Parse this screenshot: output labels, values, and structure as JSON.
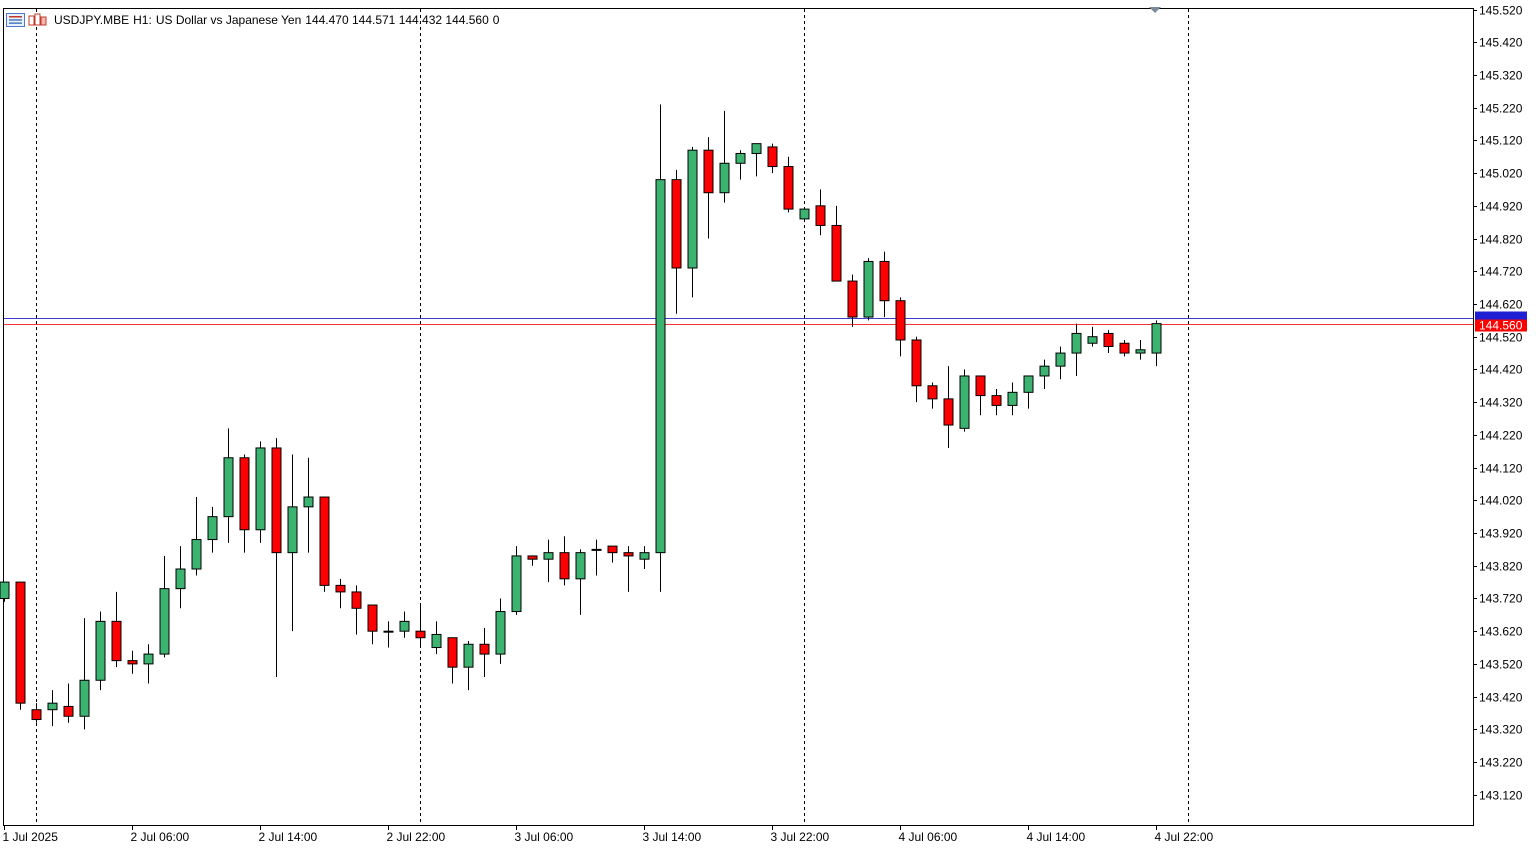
{
  "header": {
    "symbol": "USDJPY.MBE",
    "timeframe": "H1:",
    "description": "US Dollar vs Japanese Yen",
    "ohlc": "144.470 144.571 144.432 144.560",
    "volume": "0",
    "icons": [
      "list-icon",
      "one-click-trading-icon"
    ]
  },
  "colors": {
    "bull": "#3cb371",
    "bear": "#ff0000",
    "outline": "#000000",
    "bid_line": "#ff3030",
    "ask_line": "#3c3cd0",
    "bid_tag": "#ff0000",
    "ask_tag": "#1e1ed2"
  },
  "chart_data": {
    "type": "candlestick",
    "symbol": "USDJPY.MBE",
    "timeframe": "H1",
    "y_axis": {
      "ylim": [
        143.0,
        145.54
      ],
      "ticks": [
        "145.520",
        "145.420",
        "145.320",
        "145.220",
        "145.120",
        "145.020",
        "144.920",
        "144.820",
        "144.720",
        "144.620",
        "144.520",
        "144.420",
        "144.320",
        "144.220",
        "144.120",
        "144.020",
        "143.920",
        "143.820",
        "143.720",
        "143.620",
        "143.520",
        "143.420",
        "143.320",
        "143.220",
        "143.120"
      ]
    },
    "x_axis": {
      "ticks": [
        {
          "label": "1 Jul 2025",
          "index": 0
        },
        {
          "label": "2 Jul 06:00",
          "index": 8
        },
        {
          "label": "2 Jul 14:00",
          "index": 16
        },
        {
          "label": "2 Jul 22:00",
          "index": 24
        },
        {
          "label": "3 Jul 06:00",
          "index": 32
        },
        {
          "label": "3 Jul 14:00",
          "index": 40
        },
        {
          "label": "3 Jul 22:00",
          "index": 48
        },
        {
          "label": "4 Jul 06:00",
          "index": 56
        },
        {
          "label": "4 Jul 14:00",
          "index": 64
        },
        {
          "label": "4 Jul 22:00",
          "index": 72
        }
      ],
      "day_separators": [
        2,
        26,
        50,
        74
      ]
    },
    "price_lines": {
      "ask": 144.577,
      "bid": 144.56,
      "bid_label": "144.560"
    },
    "candles": [
      {
        "o": 143.72,
        "h": 143.77,
        "l": 143.71,
        "c": 143.77
      },
      {
        "o": 143.77,
        "h": 143.77,
        "l": 143.38,
        "c": 143.4
      },
      {
        "o": 143.38,
        "h": 143.4,
        "l": 143.34,
        "c": 143.35
      },
      {
        "o": 143.38,
        "h": 143.44,
        "l": 143.33,
        "c": 143.4
      },
      {
        "o": 143.39,
        "h": 143.46,
        "l": 143.34,
        "c": 143.36
      },
      {
        "o": 143.36,
        "h": 143.66,
        "l": 143.32,
        "c": 143.47
      },
      {
        "o": 143.47,
        "h": 143.68,
        "l": 143.44,
        "c": 143.65
      },
      {
        "o": 143.65,
        "h": 143.74,
        "l": 143.51,
        "c": 143.53
      },
      {
        "o": 143.53,
        "h": 143.56,
        "l": 143.49,
        "c": 143.52
      },
      {
        "o": 143.52,
        "h": 143.58,
        "l": 143.46,
        "c": 143.55
      },
      {
        "o": 143.55,
        "h": 143.85,
        "l": 143.54,
        "c": 143.75
      },
      {
        "o": 143.75,
        "h": 143.88,
        "l": 143.69,
        "c": 143.81
      },
      {
        "o": 143.81,
        "h": 144.03,
        "l": 143.79,
        "c": 143.9
      },
      {
        "o": 143.9,
        "h": 144.0,
        "l": 143.86,
        "c": 143.97
      },
      {
        "o": 143.97,
        "h": 144.24,
        "l": 143.89,
        "c": 144.15
      },
      {
        "o": 144.15,
        "h": 144.16,
        "l": 143.86,
        "c": 143.93
      },
      {
        "o": 143.93,
        "h": 144.2,
        "l": 143.89,
        "c": 144.18
      },
      {
        "o": 144.18,
        "h": 144.21,
        "l": 143.48,
        "c": 143.86
      },
      {
        "o": 143.86,
        "h": 144.16,
        "l": 143.62,
        "c": 144.0
      },
      {
        "o": 144.0,
        "h": 144.15,
        "l": 143.86,
        "c": 144.03
      },
      {
        "o": 144.03,
        "h": 144.03,
        "l": 143.74,
        "c": 143.76
      },
      {
        "o": 143.76,
        "h": 143.78,
        "l": 143.69,
        "c": 143.74
      },
      {
        "o": 143.74,
        "h": 143.76,
        "l": 143.61,
        "c": 143.69
      },
      {
        "o": 143.7,
        "h": 143.7,
        "l": 143.58,
        "c": 143.62
      },
      {
        "o": 143.62,
        "h": 143.65,
        "l": 143.57,
        "c": 143.62
      },
      {
        "o": 143.62,
        "h": 143.68,
        "l": 143.6,
        "c": 143.65
      },
      {
        "o": 143.62,
        "h": 143.7,
        "l": 143.57,
        "c": 143.6
      },
      {
        "o": 143.57,
        "h": 143.65,
        "l": 143.55,
        "c": 143.61
      },
      {
        "o": 143.6,
        "h": 143.6,
        "l": 143.46,
        "c": 143.51
      },
      {
        "o": 143.51,
        "h": 143.59,
        "l": 143.44,
        "c": 143.58
      },
      {
        "o": 143.58,
        "h": 143.63,
        "l": 143.48,
        "c": 143.55
      },
      {
        "o": 143.55,
        "h": 143.72,
        "l": 143.52,
        "c": 143.68
      },
      {
        "o": 143.68,
        "h": 143.88,
        "l": 143.67,
        "c": 143.85
      },
      {
        "o": 143.85,
        "h": 143.85,
        "l": 143.82,
        "c": 143.84
      },
      {
        "o": 143.84,
        "h": 143.9,
        "l": 143.77,
        "c": 143.86
      },
      {
        "o": 143.86,
        "h": 143.91,
        "l": 143.76,
        "c": 143.78
      },
      {
        "o": 143.78,
        "h": 143.87,
        "l": 143.67,
        "c": 143.86
      },
      {
        "o": 143.87,
        "h": 143.9,
        "l": 143.79,
        "c": 143.87
      },
      {
        "o": 143.88,
        "h": 143.88,
        "l": 143.83,
        "c": 143.86
      },
      {
        "o": 143.86,
        "h": 143.88,
        "l": 143.74,
        "c": 143.85
      },
      {
        "o": 143.84,
        "h": 143.88,
        "l": 143.81,
        "c": 143.86
      },
      {
        "o": 143.86,
        "h": 145.23,
        "l": 143.74,
        "c": 145.0
      },
      {
        "o": 145.0,
        "h": 145.03,
        "l": 144.59,
        "c": 144.73
      },
      {
        "o": 144.73,
        "h": 145.1,
        "l": 144.64,
        "c": 145.09
      },
      {
        "o": 145.09,
        "h": 145.13,
        "l": 144.82,
        "c": 144.96
      },
      {
        "o": 144.96,
        "h": 145.21,
        "l": 144.93,
        "c": 145.05
      },
      {
        "o": 145.05,
        "h": 145.09,
        "l": 145.0,
        "c": 145.08
      },
      {
        "o": 145.08,
        "h": 145.11,
        "l": 145.01,
        "c": 145.11
      },
      {
        "o": 145.1,
        "h": 145.11,
        "l": 145.02,
        "c": 145.04
      },
      {
        "o": 145.04,
        "h": 145.07,
        "l": 144.9,
        "c": 144.91
      },
      {
        "o": 144.88,
        "h": 144.91,
        "l": 144.87,
        "c": 144.91
      },
      {
        "o": 144.92,
        "h": 144.97,
        "l": 144.83,
        "c": 144.86
      },
      {
        "o": 144.86,
        "h": 144.92,
        "l": 144.69,
        "c": 144.69
      },
      {
        "o": 144.69,
        "h": 144.71,
        "l": 144.55,
        "c": 144.58
      },
      {
        "o": 144.58,
        "h": 144.76,
        "l": 144.57,
        "c": 144.75
      },
      {
        "o": 144.75,
        "h": 144.78,
        "l": 144.58,
        "c": 144.63
      },
      {
        "o": 144.63,
        "h": 144.64,
        "l": 144.46,
        "c": 144.51
      },
      {
        "o": 144.51,
        "h": 144.52,
        "l": 144.32,
        "c": 144.37
      },
      {
        "o": 144.37,
        "h": 144.38,
        "l": 144.3,
        "c": 144.33
      },
      {
        "o": 144.33,
        "h": 144.43,
        "l": 144.18,
        "c": 144.25
      },
      {
        "o": 144.24,
        "h": 144.42,
        "l": 144.23,
        "c": 144.4
      },
      {
        "o": 144.4,
        "h": 144.4,
        "l": 144.28,
        "c": 144.34
      },
      {
        "o": 144.34,
        "h": 144.36,
        "l": 144.28,
        "c": 144.31
      },
      {
        "o": 144.31,
        "h": 144.38,
        "l": 144.28,
        "c": 144.35
      },
      {
        "o": 144.35,
        "h": 144.4,
        "l": 144.3,
        "c": 144.4
      },
      {
        "o": 144.4,
        "h": 144.45,
        "l": 144.36,
        "c": 144.43
      },
      {
        "o": 144.43,
        "h": 144.49,
        "l": 144.39,
        "c": 144.47
      },
      {
        "o": 144.47,
        "h": 144.56,
        "l": 144.4,
        "c": 144.53
      },
      {
        "o": 144.5,
        "h": 144.55,
        "l": 144.49,
        "c": 144.52
      },
      {
        "o": 144.53,
        "h": 144.54,
        "l": 144.47,
        "c": 144.49
      },
      {
        "o": 144.5,
        "h": 144.51,
        "l": 144.46,
        "c": 144.47
      },
      {
        "o": 144.47,
        "h": 144.51,
        "l": 144.45,
        "c": 144.48
      },
      {
        "o": 144.47,
        "h": 144.57,
        "l": 144.43,
        "c": 144.56
      }
    ]
  }
}
